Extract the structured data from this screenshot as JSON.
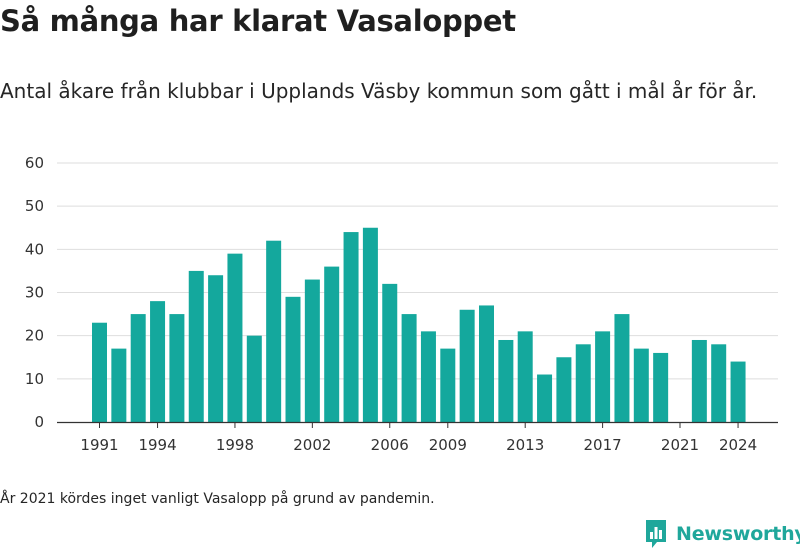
{
  "title": "Så många har klarat Vasaloppet",
  "subtitle": "Antal åkare från klubbar i Upplands Väsby kommun som gått i mål år för år.",
  "note": "År 2021 kördes inget vanligt Vasalopp på grund av pandemin.",
  "brand": {
    "name": "Newsworthy",
    "icon": "newsworthy-logo-icon",
    "color": "#1fa79b"
  },
  "chart_data": {
    "type": "bar",
    "color": "#14a89d",
    "x": [
      1991,
      1992,
      1993,
      1994,
      1995,
      1996,
      1997,
      1998,
      1999,
      2000,
      2001,
      2002,
      2003,
      2004,
      2005,
      2006,
      2007,
      2008,
      2009,
      2010,
      2011,
      2012,
      2013,
      2014,
      2015,
      2016,
      2017,
      2018,
      2019,
      2020,
      2021,
      2022,
      2023,
      2024
    ],
    "values": [
      23,
      17,
      25,
      28,
      25,
      35,
      34,
      39,
      20,
      42,
      29,
      33,
      36,
      44,
      45,
      32,
      25,
      21,
      17,
      26,
      27,
      19,
      21,
      11,
      15,
      18,
      21,
      25,
      17,
      16,
      null,
      19,
      18,
      14
    ],
    "xticks": [
      "1991",
      "1994",
      "1998",
      "2002",
      "2006",
      "2009",
      "2013",
      "2017",
      "2021",
      "2024"
    ],
    "yticks": [
      "0",
      "10",
      "20",
      "30",
      "40",
      "50",
      "60"
    ],
    "ylim": [
      0,
      60
    ],
    "grid": true
  }
}
